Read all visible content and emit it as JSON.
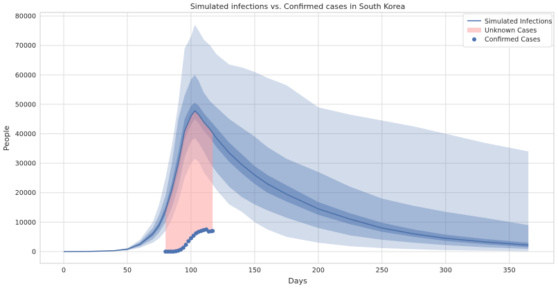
{
  "chart_data": {
    "type": "line",
    "title": "Simulated infections vs. Confirmed cases in South Korea",
    "xlabel": "Days",
    "ylabel": "People",
    "xlim": [
      -18.5,
      385
    ],
    "ylim": [
      -4000,
      81200
    ],
    "xticks": [
      0,
      50,
      100,
      150,
      200,
      250,
      300,
      350
    ],
    "yticks": [
      0,
      10000,
      20000,
      30000,
      40000,
      50000,
      60000,
      70000,
      80000
    ],
    "grid": true,
    "legend_position": "top-right",
    "colors": {
      "simulated": "#4c72b0",
      "unknown": "#ff9999",
      "confirmed": "#4c72b0"
    },
    "days": [
      0,
      20,
      40,
      50,
      60,
      70,
      75,
      80,
      85,
      90,
      95,
      100,
      103,
      106,
      110,
      115,
      120,
      130,
      140,
      150,
      160,
      175,
      200,
      225,
      250,
      275,
      300,
      330,
      365
    ],
    "series": [
      {
        "name": "Simulated Infections",
        "values": [
          0,
          50,
          300,
          800,
          2500,
          6000,
          9000,
          14000,
          21000,
          30000,
          41000,
          46000,
          47800,
          46500,
          44000,
          41500,
          38500,
          33500,
          29500,
          26000,
          23000,
          19500,
          14500,
          11000,
          8000,
          6000,
          4500,
          3300,
          2200
        ]
      }
    ],
    "bands": [
      {
        "low": [
          0,
          20,
          150,
          400,
          1300,
          3000,
          4500,
          7000,
          11000,
          17000,
          25000,
          30000,
          31500,
          30500,
          27000,
          24000,
          21000,
          16000,
          13500,
          10000,
          7500,
          5000,
          3000,
          1800,
          1200,
          800,
          500,
          300,
          100
        ],
        "high": [
          0,
          80,
          500,
          1200,
          4000,
          10000,
          16000,
          25000,
          36000,
          50000,
          69000,
          73000,
          77000,
          75000,
          72000,
          70000,
          67000,
          63500,
          62500,
          61000,
          59000,
          56500,
          49000,
          46500,
          44500,
          42500,
          40000,
          37000,
          34000
        ],
        "opacity": 0.25
      },
      {
        "low": [
          0,
          30,
          200,
          550,
          1800,
          4200,
          6500,
          10000,
          15000,
          22000,
          32000,
          37500,
          38500,
          37000,
          34000,
          30000,
          27000,
          22000,
          18500,
          16000,
          14000,
          11500,
          8000,
          5500,
          4000,
          3000,
          2200,
          1500,
          900
        ],
        "high": [
          0,
          70,
          400,
          1000,
          3300,
          8000,
          12500,
          19000,
          30000,
          45000,
          53000,
          58500,
          60000,
          58000,
          54000,
          51000,
          49000,
          45000,
          42000,
          39000,
          35500,
          31500,
          27000,
          22000,
          18000,
          15500,
          13500,
          11500,
          9000
        ],
        "opacity": 0.35
      },
      {
        "low": [
          0,
          40,
          250,
          700,
          2200,
          5300,
          8000,
          12500,
          19000,
          27000,
          38000,
          43000,
          45000,
          43500,
          41000,
          38500,
          35500,
          30500,
          26500,
          23000,
          20000,
          17000,
          12500,
          9300,
          6700,
          5000,
          3600,
          2500,
          1500
        ],
        "high": [
          0,
          60,
          350,
          900,
          2900,
          6800,
          10000,
          15500,
          23500,
          33500,
          45000,
          49500,
          50500,
          49500,
          47000,
          44500,
          42000,
          37000,
          33000,
          29000,
          26000,
          22500,
          16800,
          13000,
          9800,
          7500,
          5700,
          4300,
          3000
        ],
        "opacity": 0.45
      }
    ],
    "confirmed": {
      "name": "Confirmed Cases",
      "x": [
        80,
        82,
        84,
        86,
        88,
        90,
        92,
        94,
        96,
        98,
        100,
        102,
        104,
        106,
        108,
        110,
        112,
        114,
        116,
        117
      ],
      "y": [
        0,
        0,
        0,
        0,
        100,
        300,
        700,
        1300,
        2300,
        3500,
        4500,
        5400,
        6200,
        6700,
        7000,
        7300,
        7500,
        6800,
        6900,
        7000
      ]
    },
    "unknown": {
      "name": "Unknown Cases",
      "x_range": [
        80,
        117
      ]
    }
  }
}
